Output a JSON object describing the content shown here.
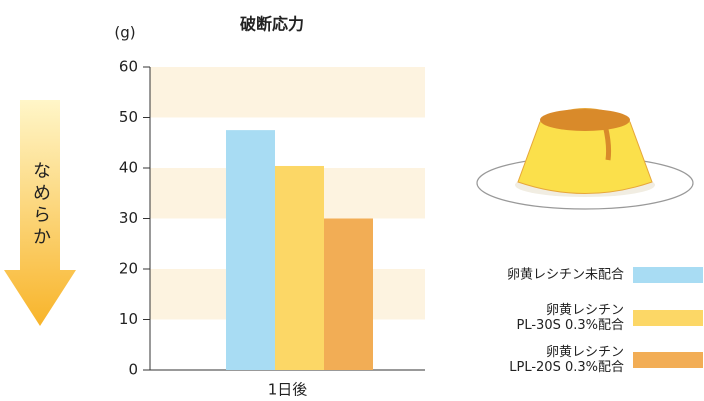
{
  "chart_data": {
    "type": "bar",
    "title": "破断応力",
    "y_label": "(g)",
    "annotation": "なめらか",
    "categories": [
      "1日後"
    ],
    "series": [
      {
        "name": "卵黄レシチン未配合",
        "color": "#a8dcf3",
        "values": [
          47.5
        ]
      },
      {
        "name": "卵黄レシチン\nPL-30S 0.3%配合",
        "color": "#fcd766",
        "values": [
          40.4
        ]
      },
      {
        "name": "卵黄レシチン\nLPL-20S 0.3%配合",
        "color": "#f2ad55",
        "values": [
          30
        ]
      }
    ],
    "ylim": [
      0,
      60
    ],
    "yticks": [
      0,
      10,
      20,
      30,
      40,
      50,
      60
    ],
    "band_color": "#fdf3e0"
  }
}
